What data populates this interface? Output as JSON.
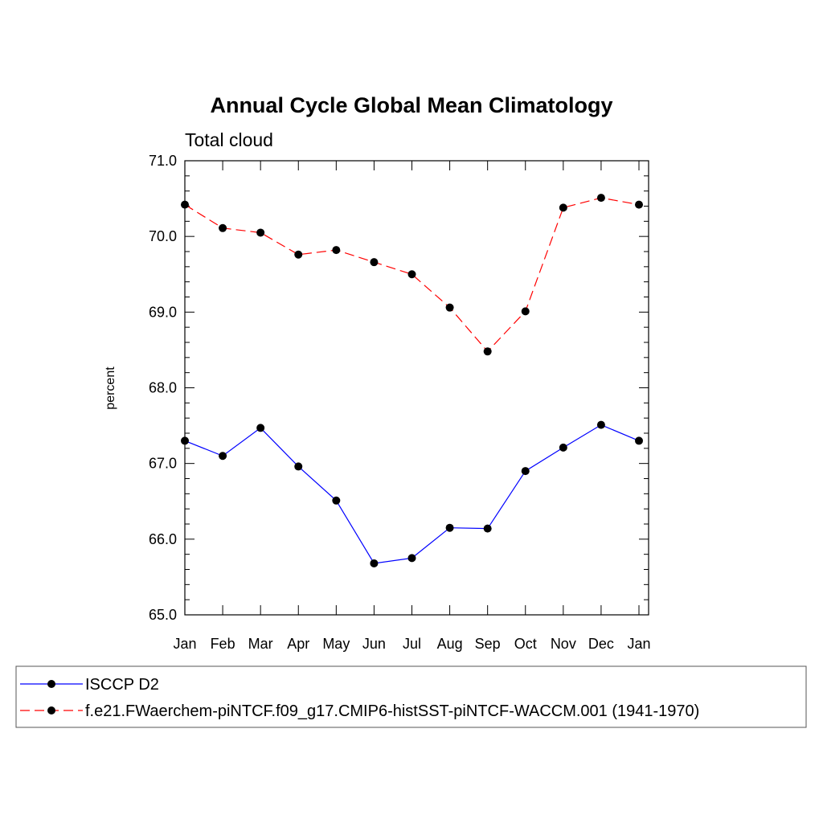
{
  "chart_data": {
    "type": "line",
    "title": "Annual Cycle Global Mean Climatology",
    "subtitle": "Total cloud",
    "ylabel": "percent",
    "xlabel": "",
    "categories": [
      "Jan",
      "Feb",
      "Mar",
      "Apr",
      "May",
      "Jun",
      "Jul",
      "Aug",
      "Sep",
      "Oct",
      "Nov",
      "Dec",
      "Jan"
    ],
    "ylim": [
      65.0,
      71.0
    ],
    "yticks": [
      "65.0",
      "66.0",
      "67.0",
      "68.0",
      "69.0",
      "70.0",
      "71.0"
    ],
    "grid": false,
    "legend_position": "bottom",
    "series": [
      {
        "name": "ISCCP D2",
        "color": "#0000ff",
        "dash": "solid",
        "values": [
          67.3,
          67.1,
          67.47,
          66.96,
          66.51,
          65.68,
          65.75,
          66.15,
          66.14,
          66.9,
          67.21,
          67.51,
          67.3
        ]
      },
      {
        "name": "f.e21.FWaerchem-piNTCF.f09_g17.CMIP6-histSST-piNTCF-WACCM.001 (1941-1970)",
        "color": "#ff0000",
        "dash": "dashed",
        "values": [
          70.42,
          70.11,
          70.05,
          69.76,
          69.82,
          69.66,
          69.5,
          69.06,
          68.48,
          69.01,
          70.38,
          70.51,
          70.42
        ]
      }
    ]
  }
}
